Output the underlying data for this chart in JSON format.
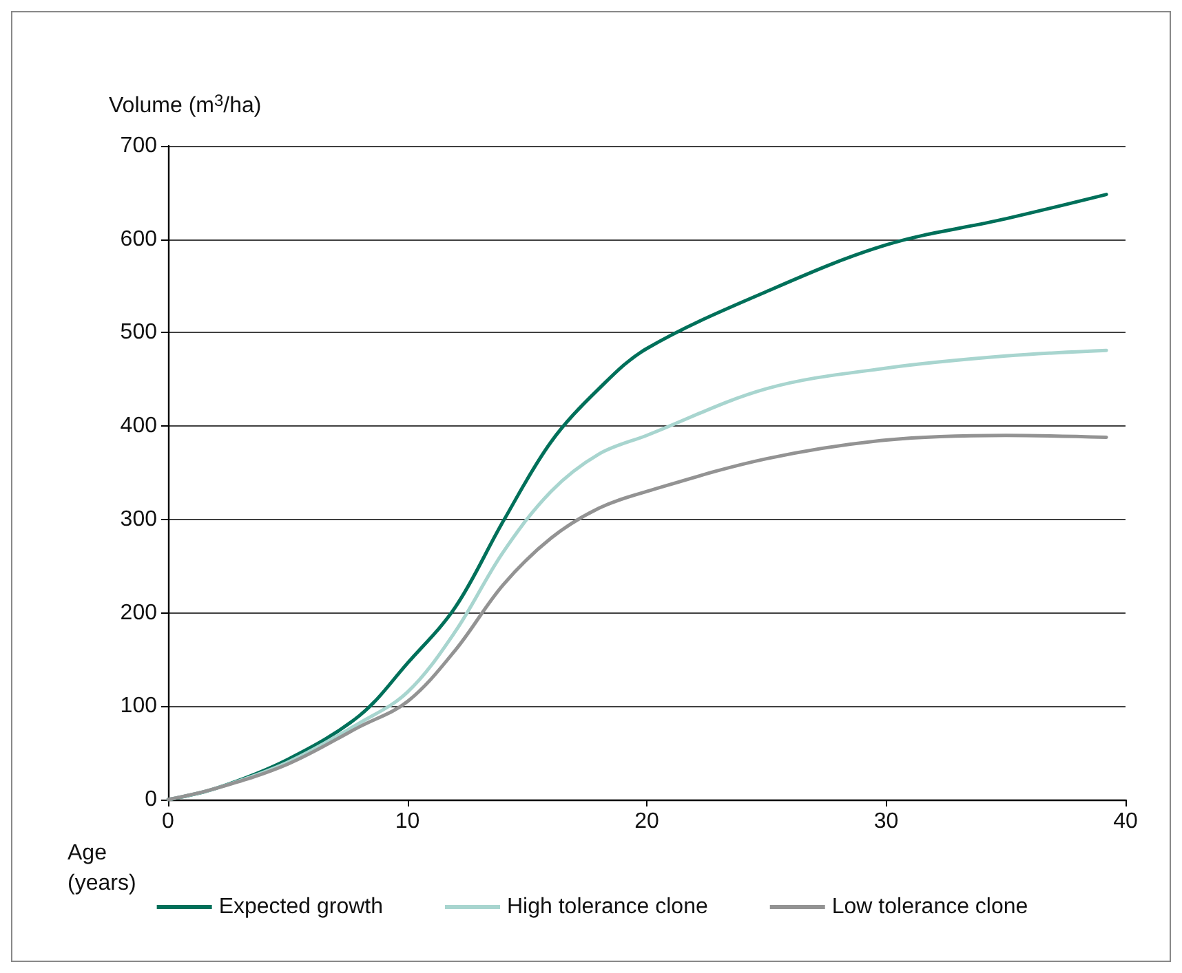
{
  "chart_data": {
    "type": "line",
    "ylabel": "Volume (m$^{3}$/ha)",
    "xlabel": "Age (years)",
    "x": [
      0,
      2,
      5,
      8,
      10,
      12,
      14,
      16,
      18,
      20,
      25,
      30,
      35,
      39.2
    ],
    "series": [
      {
        "name": "Expected growth",
        "color": "#00705a",
        "values": [
          0,
          12,
          43,
          90,
          146,
          206,
          298,
          383,
          440,
          483,
          544,
          594,
          622,
          648
        ]
      },
      {
        "name": "High tolerance clone",
        "color": "#a8d5cf",
        "values": [
          0,
          12,
          40,
          82,
          115,
          180,
          265,
          330,
          370,
          390,
          440,
          462,
          475,
          481
        ]
      },
      {
        "name": "Low tolerance clone",
        "color": "#939393",
        "values": [
          0,
          12,
          38,
          78,
          105,
          160,
          230,
          280,
          312,
          330,
          365,
          385,
          390,
          388
        ]
      }
    ],
    "xlim": [
      0,
      40
    ],
    "xticks": [
      0,
      10,
      20,
      30,
      40
    ],
    "ylim": [
      0,
      700
    ],
    "yticks": [
      0,
      100,
      200,
      300,
      400,
      500,
      600,
      700
    ],
    "grid": "y",
    "legend": "bottom",
    "marker": "none",
    "line_style": "solid"
  }
}
